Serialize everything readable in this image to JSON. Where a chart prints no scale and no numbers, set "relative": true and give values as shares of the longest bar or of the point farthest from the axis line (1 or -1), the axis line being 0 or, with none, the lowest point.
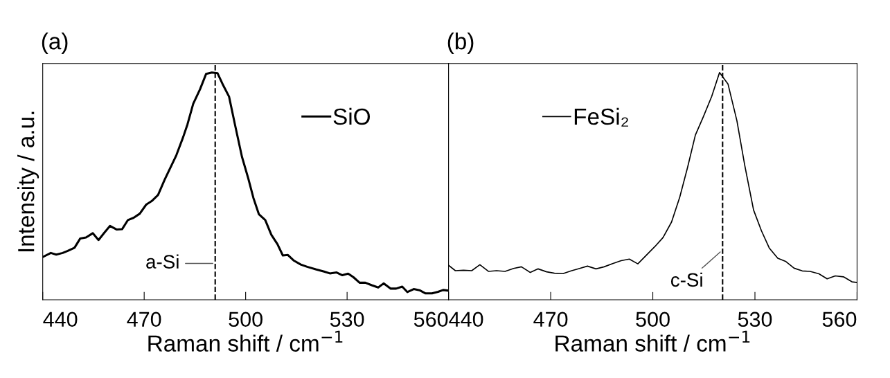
{
  "chart_data": [
    {
      "type": "line",
      "title": "(a)",
      "xlabel": "Raman shift / cm$^{−1}$",
      "ylabel": "Intensity / a.u.",
      "relative": true,
      "xlim": [
        440,
        560
      ],
      "xticks": [
        440,
        470,
        500,
        530,
        560
      ],
      "legend": "top right",
      "grid": false,
      "series": [
        {
          "name": "SiO",
          "color": "#000000",
          "x": [
            440,
            442.4,
            444.0,
            445.9,
            447.4,
            449.4,
            451.1,
            452.8,
            454.8,
            456.5,
            458.2,
            459.9,
            461.9,
            463.5,
            465.2,
            466.9,
            468.7,
            470.6,
            472.2,
            474.1,
            476.0,
            479.5,
            481.5,
            482.8,
            484.5,
            486.5,
            488.3,
            490.0,
            491.7,
            493.4,
            495.1,
            496.9,
            498.9,
            500.8,
            502.3,
            503.9,
            505.8,
            507.6,
            509.4,
            511.0,
            512.5,
            514.3,
            516.3,
            518.2,
            520.9,
            523.2,
            524.9,
            526.9,
            528.6,
            530.3,
            531.9,
            533.7,
            535.4,
            537.3,
            539.2,
            540.8,
            542.9,
            544.5,
            546.3,
            547.8,
            549.7,
            551.4,
            553.2,
            555.1,
            556.9,
            558.4,
            560
          ],
          "values": [
            0.188,
            0.206,
            0.199,
            0.206,
            0.215,
            0.229,
            0.27,
            0.274,
            0.293,
            0.263,
            0.295,
            0.325,
            0.309,
            0.311,
            0.351,
            0.361,
            0.379,
            0.419,
            0.434,
            0.461,
            0.527,
            0.636,
            0.715,
            0.772,
            0.863,
            0.926,
            0.994,
            1.0,
            0.997,
            0.943,
            0.894,
            0.767,
            0.63,
            0.533,
            0.448,
            0.377,
            0.351,
            0.286,
            0.245,
            0.195,
            0.197,
            0.172,
            0.155,
            0.145,
            0.133,
            0.124,
            0.116,
            0.12,
            0.108,
            0.115,
            0.099,
            0.075,
            0.075,
            0.064,
            0.054,
            0.072,
            0.049,
            0.049,
            0.058,
            0.034,
            0.047,
            0.042,
            0.028,
            0.028,
            0.035,
            0.043,
            0.04
          ]
        }
      ],
      "ref_lines": [
        {
          "axis": "x",
          "value": 491,
          "label": "a-Si",
          "color": "#000000",
          "line_style": "dashed"
        }
      ]
    },
    {
      "type": "line",
      "title": "(b)",
      "xlabel": "Raman shift / cm$^{−1}$",
      "relative": true,
      "xlim": [
        440,
        560
      ],
      "xticks": [
        440,
        470,
        500,
        530,
        560
      ],
      "legend": "top left",
      "grid": false,
      "series": [
        {
          "name": "FeSi₂",
          "color": "#000000",
          "x": [
            440,
            442.0,
            444.4,
            446.8,
            449.2,
            451.7,
            454.1,
            456.6,
            459.1,
            461.4,
            464.0,
            466.3,
            468.8,
            471.1,
            473.6,
            476.0,
            478.5,
            480.8,
            483.3,
            485.7,
            488.2,
            490.7,
            493.1,
            495.6,
            498.1,
            500.6,
            503.0,
            505.5,
            507.9,
            510.2,
            512.5,
            514.8,
            517.3,
            519.6,
            522.1,
            524.7,
            527.0,
            529.6,
            531.9,
            534.2,
            536.7,
            539.1,
            541.5,
            543.9,
            546.2,
            548.8,
            551.2,
            553.6,
            556.0,
            558.5,
            560
          ],
          "values": [
            0.152,
            0.128,
            0.13,
            0.128,
            0.154,
            0.125,
            0.128,
            0.125,
            0.138,
            0.145,
            0.12,
            0.136,
            0.123,
            0.117,
            0.115,
            0.127,
            0.138,
            0.148,
            0.136,
            0.145,
            0.159,
            0.172,
            0.179,
            0.158,
            0.196,
            0.234,
            0.274,
            0.342,
            0.451,
            0.582,
            0.725,
            0.804,
            0.895,
            1.0,
            0.949,
            0.788,
            0.592,
            0.395,
            0.304,
            0.228,
            0.183,
            0.168,
            0.139,
            0.127,
            0.125,
            0.114,
            0.092,
            0.105,
            0.101,
            0.079,
            0.076
          ]
        }
      ],
      "ref_lines": [
        {
          "axis": "x",
          "value": 520.5,
          "label": "c-Si",
          "color": "#000000",
          "line_style": "dashed"
        }
      ]
    }
  ]
}
